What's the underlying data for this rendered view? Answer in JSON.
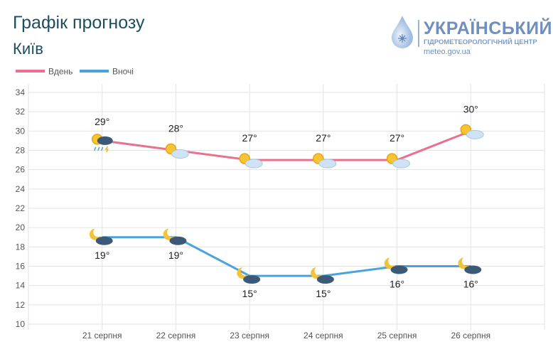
{
  "header": {
    "title": "Графік прогнозу",
    "city": "Київ"
  },
  "logo": {
    "line1": "УКРАЇНСЬКИЙ",
    "line2": "ГІДРОМЕТЕОРОЛОГІЧНИЙ ЦЕНТР",
    "line3": "meteo.gov.ua"
  },
  "colors": {
    "day": "#e8718d",
    "night": "#4aa3df"
  },
  "chart_data": {
    "type": "line",
    "title": "Графік прогнозу",
    "categories": [
      "21 серпня",
      "22 серпня",
      "23 серпня",
      "24 серпня",
      "25 серпня",
      "26 серпня"
    ],
    "series": [
      {
        "name": "Вдень",
        "values": [
          29,
          28,
          27,
          27,
          27,
          30
        ],
        "labels": [
          "29°",
          "28°",
          "27°",
          "27°",
          "27°",
          "30°"
        ],
        "icons": [
          "sun-thunderstorm-rain",
          "sun-cloud",
          "sun-cloud",
          "sun-cloud",
          "sun-cloud",
          "sun-cloud"
        ]
      },
      {
        "name": "Вночі",
        "values": [
          19,
          19,
          15,
          15,
          16,
          16
        ],
        "labels": [
          "19°",
          "19°",
          "15°",
          "15°",
          "16°",
          "16°"
        ],
        "icons": [
          "moon-cloud",
          "moon-cloud",
          "moon-cloud",
          "moon-cloud",
          "moon-cloud",
          "moon-cloud"
        ]
      }
    ],
    "yticks": [
      "10",
      "12",
      "14",
      "16",
      "18",
      "20",
      "22",
      "24",
      "26",
      "28",
      "30",
      "32",
      "34"
    ],
    "ylim": [
      10,
      34
    ],
    "grid": true,
    "legend": "top-left"
  }
}
